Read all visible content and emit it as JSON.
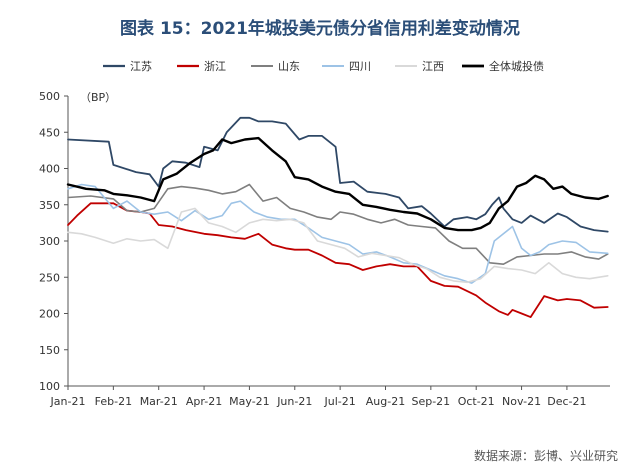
{
  "title": "图表 15：2021年城投美元债分省信用利差变动情况",
  "source": "数据来源：彭博、兴业研究",
  "chart_data": {
    "type": "line",
    "unit_label": "（BP）",
    "ylim": [
      100,
      500
    ],
    "yticks": [
      100,
      150,
      200,
      250,
      300,
      350,
      400,
      450,
      500
    ],
    "xlim": [
      0,
      11.95
    ],
    "xtick_labels": [
      "Jan-21",
      "Feb-21",
      "Mar-21",
      "Apr-21",
      "May-21",
      "Jun-21",
      "Jul-21",
      "Aug-21",
      "Sep-21",
      "Oct-21",
      "Nov-21",
      "Dec-21"
    ],
    "legend_position": "top",
    "series": [
      {
        "name": "江苏",
        "color": "#2f4866",
        "width": 1.8,
        "x": [
          0,
          0.9,
          1.0,
          1.5,
          1.8,
          2.0,
          2.1,
          2.3,
          2.6,
          2.9,
          3.0,
          3.3,
          3.5,
          3.8,
          4.0,
          4.2,
          4.5,
          4.8,
          5.1,
          5.3,
          5.6,
          5.9,
          6.0,
          6.3,
          6.6,
          7.0,
          7.3,
          7.5,
          7.8,
          8.0,
          8.3,
          8.5,
          8.8,
          9.0,
          9.2,
          9.35,
          9.5,
          9.6,
          9.8,
          10.0,
          10.2,
          10.5,
          10.8,
          11.0,
          11.3,
          11.6,
          11.9
        ],
        "y": [
          440,
          437,
          405,
          395,
          392,
          375,
          400,
          410,
          408,
          402,
          430,
          425,
          450,
          470,
          470,
          465,
          465,
          462,
          440,
          445,
          445,
          430,
          380,
          382,
          368,
          365,
          360,
          345,
          348,
          338,
          320,
          330,
          333,
          330,
          337,
          350,
          360,
          345,
          330,
          325,
          335,
          325,
          338,
          333,
          320,
          315,
          313
        ]
      },
      {
        "name": "浙江",
        "color": "#c00000",
        "width": 1.8,
        "x": [
          0,
          0.2,
          0.5,
          1.0,
          1.3,
          1.6,
          1.8,
          2.0,
          2.3,
          2.6,
          3.0,
          3.3,
          3.6,
          3.9,
          4.2,
          4.5,
          4.8,
          5.0,
          5.3,
          5.6,
          5.9,
          6.2,
          6.5,
          6.8,
          7.1,
          7.4,
          7.7,
          8.0,
          8.3,
          8.6,
          9.0,
          9.2,
          9.5,
          9.7,
          9.8,
          10.0,
          10.2,
          10.5,
          10.8,
          11.0,
          11.3,
          11.6,
          11.9
        ],
        "y": [
          322,
          335,
          352,
          352,
          342,
          340,
          338,
          322,
          320,
          315,
          310,
          308,
          305,
          303,
          310,
          295,
          290,
          288,
          288,
          280,
          270,
          268,
          260,
          265,
          268,
          265,
          265,
          245,
          238,
          237,
          225,
          215,
          203,
          198,
          205,
          200,
          195,
          224,
          218,
          220,
          218,
          208,
          209
        ]
      },
      {
        "name": "山东",
        "color": "#7f7f7f",
        "width": 1.6,
        "x": [
          0,
          0.5,
          1.0,
          1.3,
          1.6,
          1.9,
          2.2,
          2.5,
          2.8,
          3.1,
          3.4,
          3.7,
          4.0,
          4.3,
          4.6,
          4.9,
          5.2,
          5.5,
          5.8,
          6.0,
          6.3,
          6.6,
          6.9,
          7.2,
          7.5,
          7.8,
          8.1,
          8.4,
          8.7,
          9.0,
          9.3,
          9.6,
          9.9,
          10.2,
          10.5,
          10.8,
          11.1,
          11.4,
          11.7,
          11.9
        ],
        "y": [
          360,
          362,
          358,
          342,
          340,
          345,
          372,
          375,
          373,
          370,
          365,
          368,
          378,
          355,
          360,
          345,
          340,
          333,
          330,
          340,
          337,
          330,
          325,
          330,
          322,
          320,
          318,
          300,
          290,
          290,
          270,
          268,
          278,
          280,
          282,
          282,
          285,
          278,
          275,
          282
        ]
      },
      {
        "name": "四川",
        "color": "#9dc3e6",
        "width": 1.6,
        "x": [
          0,
          0.3,
          0.6,
          1.0,
          1.3,
          1.6,
          1.9,
          2.2,
          2.5,
          2.8,
          3.1,
          3.4,
          3.6,
          3.8,
          4.1,
          4.4,
          4.7,
          5.0,
          5.3,
          5.6,
          5.9,
          6.2,
          6.5,
          6.8,
          7.1,
          7.4,
          7.7,
          8.0,
          8.3,
          8.6,
          8.9,
          9.2,
          9.4,
          9.6,
          9.8,
          10.0,
          10.2,
          10.4,
          10.6,
          10.9,
          11.2,
          11.5,
          11.9
        ],
        "y": [
          372,
          378,
          375,
          345,
          355,
          340,
          337,
          340,
          328,
          342,
          330,
          335,
          352,
          355,
          340,
          333,
          330,
          330,
          318,
          305,
          300,
          295,
          282,
          285,
          278,
          270,
          268,
          260,
          252,
          248,
          242,
          255,
          300,
          310,
          320,
          290,
          280,
          285,
          295,
          300,
          298,
          285,
          283
        ]
      },
      {
        "name": "江西",
        "color": "#d9d9d9",
        "width": 1.6,
        "x": [
          0,
          0.3,
          0.6,
          1.0,
          1.3,
          1.6,
          1.9,
          2.2,
          2.5,
          2.8,
          3.1,
          3.4,
          3.7,
          4.0,
          4.3,
          4.6,
          4.9,
          5.2,
          5.5,
          5.8,
          6.1,
          6.4,
          6.7,
          7.0,
          7.3,
          7.6,
          7.9,
          8.2,
          8.5,
          8.8,
          9.1,
          9.4,
          9.7,
          10.0,
          10.3,
          10.6,
          10.9,
          11.2,
          11.5,
          11.9
        ],
        "y": [
          312,
          310,
          305,
          297,
          303,
          300,
          302,
          290,
          340,
          345,
          325,
          320,
          312,
          325,
          330,
          328,
          330,
          325,
          300,
          295,
          290,
          278,
          283,
          280,
          277,
          268,
          262,
          250,
          245,
          243,
          248,
          265,
          262,
          260,
          255,
          270,
          255,
          250,
          248,
          252
        ]
      },
      {
        "name": "全体城投债",
        "color": "#000000",
        "width": 2.4,
        "x": [
          0,
          0.4,
          0.8,
          1.0,
          1.3,
          1.6,
          1.9,
          2.1,
          2.4,
          2.7,
          3.0,
          3.2,
          3.4,
          3.6,
          3.9,
          4.2,
          4.5,
          4.8,
          5.0,
          5.3,
          5.6,
          5.9,
          6.2,
          6.5,
          6.8,
          7.1,
          7.4,
          7.7,
          8.0,
          8.3,
          8.6,
          8.9,
          9.1,
          9.3,
          9.5,
          9.7,
          9.9,
          10.1,
          10.3,
          10.5,
          10.7,
          10.9,
          11.1,
          11.4,
          11.7,
          11.9
        ],
        "y": [
          378,
          372,
          370,
          365,
          363,
          360,
          355,
          385,
          393,
          408,
          420,
          425,
          440,
          435,
          440,
          442,
          425,
          410,
          388,
          385,
          375,
          368,
          365,
          350,
          347,
          343,
          340,
          338,
          330,
          318,
          315,
          315,
          318,
          325,
          345,
          355,
          375,
          380,
          390,
          385,
          372,
          375,
          365,
          360,
          358,
          362
        ]
      }
    ]
  }
}
